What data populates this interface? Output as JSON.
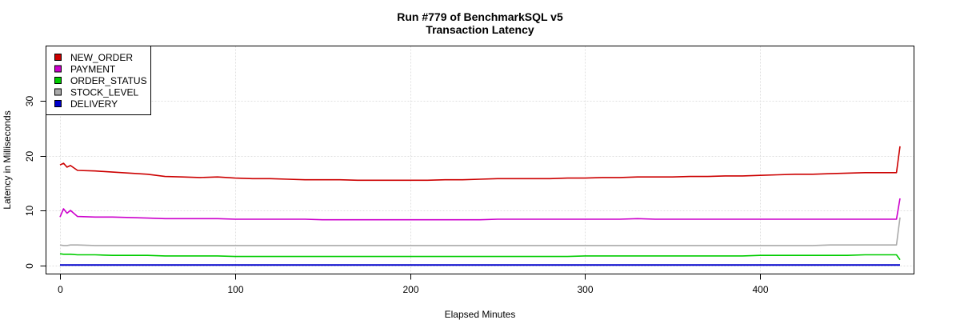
{
  "chart_data": {
    "type": "line",
    "title": "Run #779 of BenchmarkSQL v5",
    "subtitle": "Transaction Latency",
    "xlabel": "Elapsed Minutes",
    "ylabel": "Latency in Milliseconds",
    "xlim": [
      -8,
      488
    ],
    "ylim": [
      -1.6,
      40
    ],
    "xticks": [
      0,
      100,
      200,
      300,
      400
    ],
    "yticks": [
      0,
      10,
      20,
      30
    ],
    "grid": true,
    "legend_position": "top-left",
    "x": [
      0,
      2,
      4,
      6,
      10,
      20,
      30,
      40,
      50,
      60,
      70,
      80,
      90,
      100,
      110,
      120,
      130,
      140,
      150,
      160,
      170,
      180,
      190,
      200,
      210,
      220,
      230,
      240,
      250,
      260,
      270,
      280,
      290,
      300,
      310,
      320,
      330,
      340,
      350,
      360,
      370,
      380,
      390,
      400,
      410,
      420,
      430,
      440,
      450,
      460,
      470,
      478,
      480
    ],
    "series": [
      {
        "name": "NEW_ORDER",
        "color": "#cc0000",
        "values": [
          18.3,
          18.6,
          17.9,
          18.2,
          17.3,
          17.2,
          17.0,
          16.8,
          16.6,
          16.2,
          16.1,
          16.0,
          16.1,
          15.9,
          15.8,
          15.8,
          15.7,
          15.6,
          15.6,
          15.6,
          15.5,
          15.5,
          15.5,
          15.5,
          15.5,
          15.6,
          15.6,
          15.7,
          15.8,
          15.8,
          15.8,
          15.8,
          15.9,
          15.9,
          16.0,
          16.0,
          16.1,
          16.1,
          16.1,
          16.2,
          16.2,
          16.3,
          16.3,
          16.4,
          16.5,
          16.6,
          16.6,
          16.7,
          16.8,
          16.9,
          16.9,
          16.9,
          21.7
        ]
      },
      {
        "name": "PAYMENT",
        "color": "#cc00cc",
        "values": [
          8.8,
          10.3,
          9.5,
          10.0,
          8.9,
          8.8,
          8.8,
          8.7,
          8.6,
          8.5,
          8.5,
          8.5,
          8.5,
          8.4,
          8.4,
          8.4,
          8.4,
          8.4,
          8.3,
          8.3,
          8.3,
          8.3,
          8.3,
          8.3,
          8.3,
          8.3,
          8.3,
          8.3,
          8.4,
          8.4,
          8.4,
          8.4,
          8.4,
          8.4,
          8.4,
          8.4,
          8.5,
          8.4,
          8.4,
          8.4,
          8.4,
          8.4,
          8.4,
          8.4,
          8.4,
          8.4,
          8.4,
          8.4,
          8.4,
          8.4,
          8.4,
          8.4,
          12.2
        ]
      },
      {
        "name": "ORDER_STATUS",
        "color": "#00cc00",
        "values": [
          2.1,
          2.0,
          2.0,
          2.0,
          1.9,
          1.9,
          1.8,
          1.8,
          1.8,
          1.7,
          1.7,
          1.7,
          1.7,
          1.6,
          1.6,
          1.6,
          1.6,
          1.6,
          1.6,
          1.6,
          1.6,
          1.6,
          1.6,
          1.6,
          1.6,
          1.6,
          1.6,
          1.6,
          1.6,
          1.6,
          1.6,
          1.6,
          1.6,
          1.7,
          1.7,
          1.7,
          1.7,
          1.7,
          1.7,
          1.7,
          1.7,
          1.7,
          1.7,
          1.8,
          1.8,
          1.8,
          1.8,
          1.8,
          1.8,
          1.9,
          1.9,
          1.9,
          1.0
        ]
      },
      {
        "name": "STOCK_LEVEL",
        "color": "#aaaaaa",
        "values": [
          3.7,
          3.6,
          3.6,
          3.7,
          3.7,
          3.6,
          3.6,
          3.6,
          3.6,
          3.6,
          3.6,
          3.6,
          3.6,
          3.6,
          3.6,
          3.6,
          3.6,
          3.6,
          3.6,
          3.6,
          3.6,
          3.6,
          3.6,
          3.6,
          3.6,
          3.6,
          3.6,
          3.6,
          3.6,
          3.6,
          3.6,
          3.6,
          3.6,
          3.6,
          3.6,
          3.6,
          3.6,
          3.6,
          3.6,
          3.6,
          3.6,
          3.6,
          3.6,
          3.6,
          3.6,
          3.6,
          3.6,
          3.7,
          3.7,
          3.7,
          3.7,
          3.7,
          8.7
        ]
      },
      {
        "name": "DELIVERY",
        "color": "#0000cc",
        "values": [
          0.05,
          0.05,
          0.05,
          0.05,
          0.05,
          0.05,
          0.05,
          0.05,
          0.05,
          0.05,
          0.05,
          0.05,
          0.05,
          0.05,
          0.05,
          0.05,
          0.05,
          0.05,
          0.05,
          0.05,
          0.05,
          0.05,
          0.05,
          0.05,
          0.05,
          0.05,
          0.05,
          0.05,
          0.05,
          0.05,
          0.05,
          0.05,
          0.05,
          0.05,
          0.05,
          0.05,
          0.05,
          0.05,
          0.05,
          0.05,
          0.05,
          0.05,
          0.05,
          0.05,
          0.05,
          0.05,
          0.05,
          0.05,
          0.05,
          0.05,
          0.05,
          0.05,
          0.05
        ]
      }
    ]
  }
}
